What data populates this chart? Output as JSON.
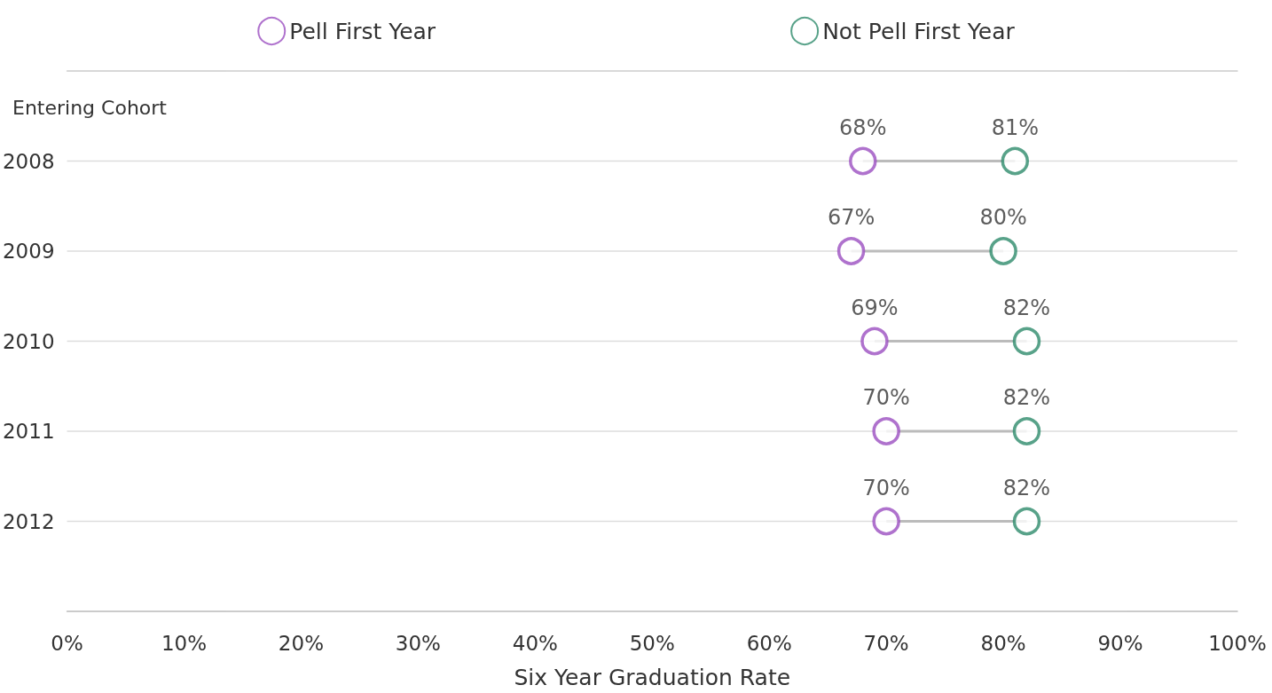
{
  "chart_data": {
    "type": "scatter",
    "orientation": "horizontal",
    "xlabel": "Six Year Graduation Rate",
    "ylabel": "Entering Cohort",
    "categories": [
      "2008",
      "2009",
      "2010",
      "2011",
      "2012"
    ],
    "series": [
      {
        "name": "Pell First Year",
        "color": "#9b4fc0",
        "values": [
          68,
          67,
          69,
          70,
          70
        ],
        "value_labels": [
          "68%",
          "67%",
          "69%",
          "70%",
          "70%"
        ]
      },
      {
        "name": "Not Pell First Year",
        "color": "#2e8b6b",
        "values": [
          81,
          80,
          82,
          82,
          82
        ],
        "value_labels": [
          "81%",
          "80%",
          "82%",
          "82%",
          "82%"
        ]
      }
    ],
    "xlim": [
      0,
      100
    ],
    "xticks": [
      {
        "value": 0,
        "label": "0%"
      },
      {
        "value": 10,
        "label": "10%"
      },
      {
        "value": 20,
        "label": "20%"
      },
      {
        "value": 30,
        "label": "30%"
      },
      {
        "value": 40,
        "label": "40%"
      },
      {
        "value": 50,
        "label": "50%"
      },
      {
        "value": 60,
        "label": "60%"
      },
      {
        "value": 70,
        "label": "70%"
      },
      {
        "value": 80,
        "label": "80%"
      },
      {
        "value": 90,
        "label": "90%"
      },
      {
        "value": 100,
        "label": "100%"
      }
    ],
    "grid": "y",
    "legend": "top",
    "marker": "circle"
  }
}
